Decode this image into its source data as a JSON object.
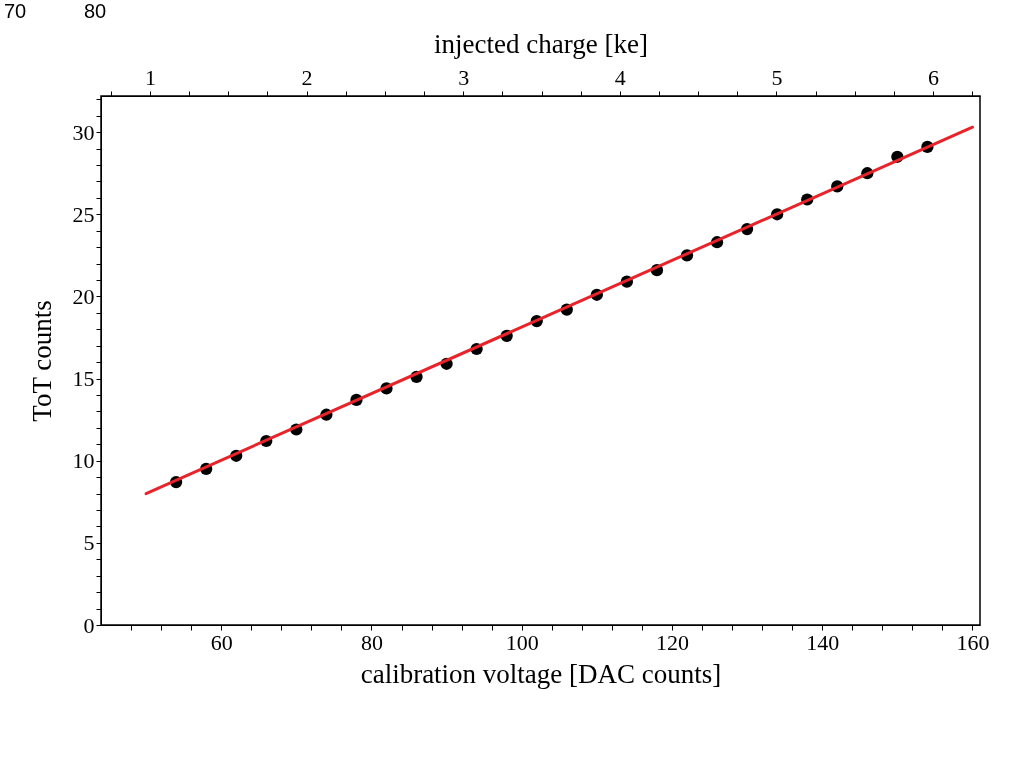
{
  "chart_data": {
    "type": "scatter",
    "xlabel": "calibration voltage [DAC counts]",
    "ylabel": "ToT counts",
    "x2label": "injected charge [ke]",
    "annotations": [
      "70",
      "80"
    ],
    "grid": false,
    "xlim": [
      44,
      161
    ],
    "xticks": [
      {
        "value": 48,
        "label": null
      },
      {
        "value": 52,
        "label": null
      },
      {
        "value": 56,
        "label": null
      },
      60,
      {
        "value": 64,
        "label": null
      },
      {
        "value": 68,
        "label": null
      },
      {
        "value": 72,
        "label": null
      },
      {
        "value": 76,
        "label": null
      },
      80,
      {
        "value": 84,
        "label": null
      },
      {
        "value": 88,
        "label": null
      },
      {
        "value": 92,
        "label": null
      },
      {
        "value": 96,
        "label": null
      },
      100,
      {
        "value": 104,
        "label": null
      },
      {
        "value": 108,
        "label": null
      },
      {
        "value": 112,
        "label": null
      },
      {
        "value": 116,
        "label": null
      },
      120,
      {
        "value": 124,
        "label": null
      },
      {
        "value": 128,
        "label": null
      },
      {
        "value": 132,
        "label": null
      },
      {
        "value": 136,
        "label": null
      },
      140,
      {
        "value": 144,
        "label": null
      },
      {
        "value": 148,
        "label": null
      },
      {
        "value": 152,
        "label": null
      },
      {
        "value": 156,
        "label": null
      },
      160
    ],
    "ylim": [
      0,
      32.2
    ],
    "yticks": [
      0,
      {
        "value": 1,
        "label": null
      },
      {
        "value": 2,
        "label": null
      },
      {
        "value": 3,
        "label": null
      },
      {
        "value": 4,
        "label": null
      },
      5,
      {
        "value": 6,
        "label": null
      },
      {
        "value": 7,
        "label": null
      },
      {
        "value": 8,
        "label": null
      },
      {
        "value": 9,
        "label": null
      },
      10,
      {
        "value": 11,
        "label": null
      },
      {
        "value": 12,
        "label": null
      },
      {
        "value": 13,
        "label": null
      },
      {
        "value": 14,
        "label": null
      },
      15,
      {
        "value": 16,
        "label": null
      },
      {
        "value": 17,
        "label": null
      },
      {
        "value": 18,
        "label": null
      },
      {
        "value": 19,
        "label": null
      },
      20,
      {
        "value": 21,
        "label": null
      },
      {
        "value": 22,
        "label": null
      },
      {
        "value": 23,
        "label": null
      },
      {
        "value": 24,
        "label": null
      },
      25,
      {
        "value": 26,
        "label": null
      },
      {
        "value": 27,
        "label": null
      },
      {
        "value": 28,
        "label": null
      },
      {
        "value": 29,
        "label": null
      },
      30,
      {
        "value": 31,
        "label": null
      },
      {
        "value": 32,
        "label": null
      }
    ],
    "x2lim": [
      0.687,
      6.3
    ],
    "x2ticks": [
      {
        "value": 0.75,
        "label": null
      },
      1,
      {
        "value": 1.25,
        "label": null
      },
      {
        "value": 1.5,
        "label": null
      },
      {
        "value": 1.75,
        "label": null
      },
      2,
      {
        "value": 2.25,
        "label": null
      },
      {
        "value": 2.5,
        "label": null
      },
      {
        "value": 2.75,
        "label": null
      },
      3,
      {
        "value": 3.25,
        "label": null
      },
      {
        "value": 3.5,
        "label": null
      },
      {
        "value": 3.75,
        "label": null
      },
      4,
      {
        "value": 4.25,
        "label": null
      },
      {
        "value": 4.5,
        "label": null
      },
      {
        "value": 4.75,
        "label": null
      },
      5,
      {
        "value": 5.25,
        "label": null
      },
      {
        "value": 5.5,
        "label": null
      },
      {
        "value": 5.75,
        "label": null
      },
      6,
      {
        "value": 6.25,
        "label": null
      }
    ],
    "series": [
      {
        "marker": "circle",
        "color": "#000000",
        "x": [
          54,
          58,
          62,
          66,
          70,
          74,
          78,
          82,
          86,
          90,
          94,
          98,
          102,
          106,
          110,
          114,
          118,
          122,
          126,
          130,
          134,
          138,
          142,
          146,
          150,
          154
        ],
        "values": [
          8.7,
          9.5,
          10.3,
          11.2,
          11.9,
          12.8,
          13.7,
          14.4,
          15.1,
          15.9,
          16.8,
          17.6,
          18.5,
          19.2,
          20.1,
          20.9,
          21.6,
          22.5,
          23.3,
          24.1,
          25.0,
          25.9,
          26.7,
          27.5,
          28.5,
          29.1
        ]
      },
      {
        "type": "line",
        "marker": "none",
        "color": "#e8232a",
        "x": [
          50,
          160
        ],
        "values": [
          8.0,
          30.3
        ]
      }
    ]
  }
}
